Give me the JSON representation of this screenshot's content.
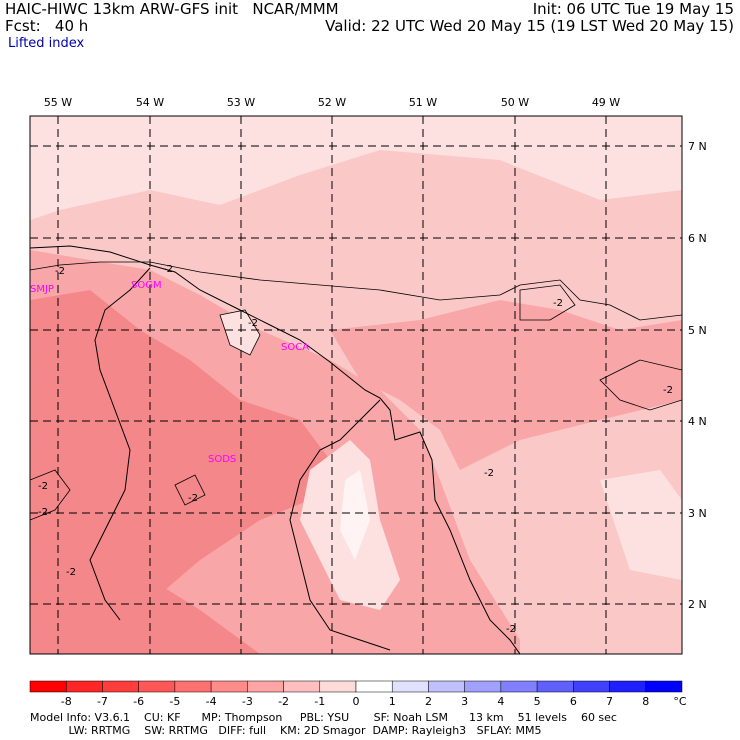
{
  "header": {
    "left_line1": "HAIC-HIWC 13km ARW-GFS init   NCAR/MMM",
    "left_line2": "Fcst:   40 h",
    "right_line1": "Init: 06 UTC Tue 19 May 15",
    "right_line2": "Valid: 22 UTC Wed 20 May 15 (19 LST Wed 20 May 15)",
    "field": "Lifted index"
  },
  "map": {
    "lon_labels": [
      "55 W",
      "54 W",
      "53 W",
      "52 W",
      "51 W",
      "50 W",
      "49 W"
    ],
    "lat_labels": [
      "7 N",
      "6 N",
      "5 N",
      "4 N",
      "3 N",
      "2 N"
    ],
    "stations": [
      "SMJP",
      "SOGM",
      "SOCA",
      "SODS"
    ],
    "contour_labels": [
      "-2",
      "-2",
      "-2",
      "-2",
      "-2",
      "-2",
      "-2",
      "-2",
      "-2",
      "-2",
      "-2"
    ],
    "colors": {
      "deep": "#f4878a",
      "mid": "#f8a6a8",
      "light": "#fbc8c8",
      "pale": "#fde1e1",
      "white": "#fff3f3",
      "station": "#ff00ff"
    }
  },
  "colorbar": {
    "ticks": [
      "-8",
      "-7",
      "-6",
      "-5",
      "-4",
      "-3",
      "-2",
      "-1",
      "0",
      "1",
      "2",
      "3",
      "4",
      "5",
      "6",
      "7",
      "8"
    ],
    "unit": "°C",
    "colors": [
      "#ff0000",
      "#ff2626",
      "#ff3d3d",
      "#ff5757",
      "#ff7171",
      "#ff8b8b",
      "#ffa5a5",
      "#ffbfbf",
      "#ffdada",
      "#ffffff",
      "#e0e0ff",
      "#c0c0ff",
      "#a0a0ff",
      "#8080ff",
      "#6060ff",
      "#4040ff",
      "#2020ff",
      "#0000ff"
    ]
  },
  "footer": {
    "line1": "Model Info: V3.6.1    CU: KF      MP: Thompson     PBL: YSU       SF: Noah LSM      13 km    51 levels    60 sec",
    "line2": "           LW: RRTMG    SW: RRTMG   DIFF: full    KM: 2D Smagor  DAMP: Rayleigh3   SFLAY: MM5"
  }
}
